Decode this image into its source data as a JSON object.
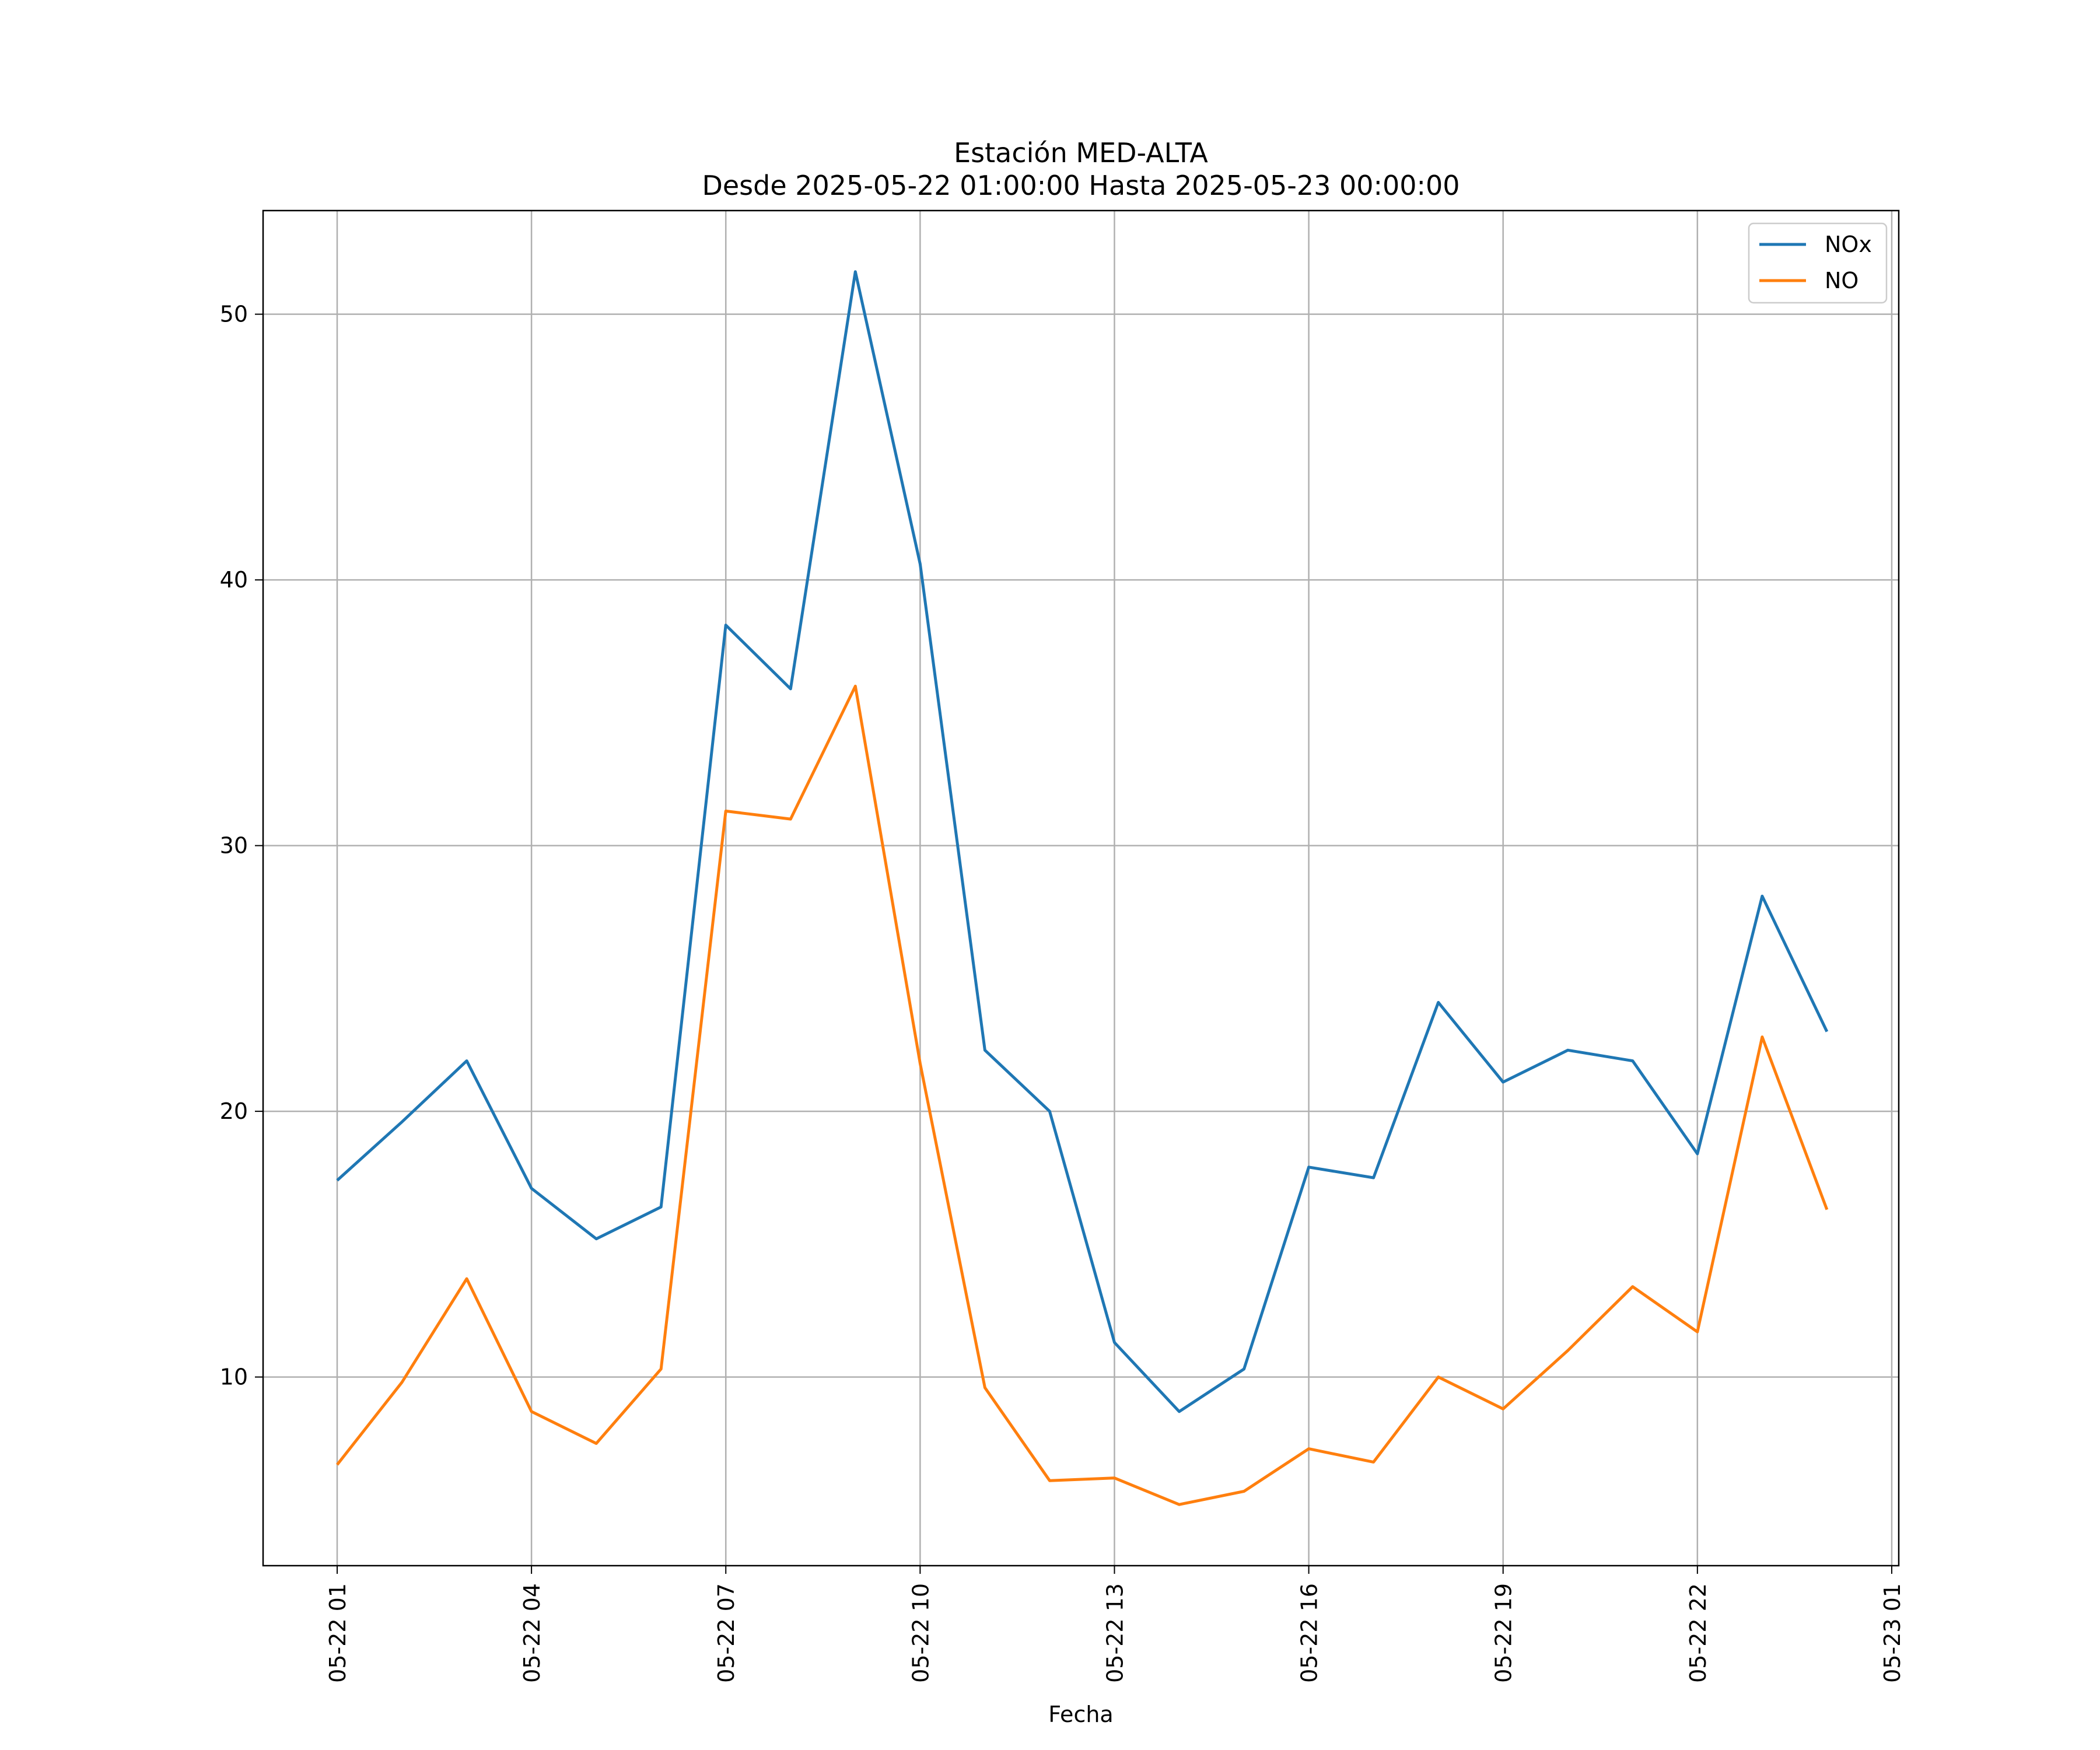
{
  "chart_data": {
    "type": "line",
    "title": "Estación MED-ALTA",
    "subtitle": "Desde 2025-05-22 01:00:00 Hasta 2025-05-23 00:00:00",
    "xlabel": "Fecha",
    "ylabel": "",
    "x": [
      "05-22 01",
      "05-22 02",
      "05-22 03",
      "05-22 04",
      "05-22 05",
      "05-22 06",
      "05-22 07",
      "05-22 08",
      "05-22 09",
      "05-22 10",
      "05-22 11",
      "05-22 12",
      "05-22 13",
      "05-22 14",
      "05-22 15",
      "05-22 16",
      "05-22 17",
      "05-22 18",
      "05-22 19",
      "05-22 20",
      "05-22 21",
      "05-22 22",
      "05-22 23",
      "05-23 00"
    ],
    "x_tick_labels": [
      "05-22 01",
      "05-22 04",
      "05-22 07",
      "05-22 10",
      "05-22 13",
      "05-22 16",
      "05-22 19",
      "05-22 22",
      "05-23 01"
    ],
    "y_ticks": [
      10,
      20,
      30,
      40,
      50
    ],
    "xlim": [
      "05-22 00:53",
      "05-23 01:07"
    ],
    "ylim": [
      2.9,
      53.9
    ],
    "grid": true,
    "legend_position": "top-right",
    "series": [
      {
        "name": "NOx",
        "color": "#1f77b4",
        "values": [
          17.4,
          19.6,
          21.9,
          17.1,
          15.2,
          16.4,
          38.3,
          35.9,
          51.6,
          40.6,
          22.3,
          20.0,
          11.3,
          8.7,
          10.3,
          17.9,
          17.5,
          24.1,
          21.1,
          22.3,
          21.9,
          18.4,
          28.1,
          23.0
        ]
      },
      {
        "name": "NO",
        "color": "#ff7f0e",
        "values": [
          6.7,
          9.8,
          13.7,
          8.7,
          7.5,
          10.3,
          31.3,
          31.0,
          36.0,
          21.8,
          9.6,
          6.1,
          6.2,
          5.2,
          5.7,
          7.3,
          6.8,
          10.0,
          8.8,
          11.0,
          13.4,
          11.7,
          22.8,
          16.3
        ]
      }
    ]
  }
}
